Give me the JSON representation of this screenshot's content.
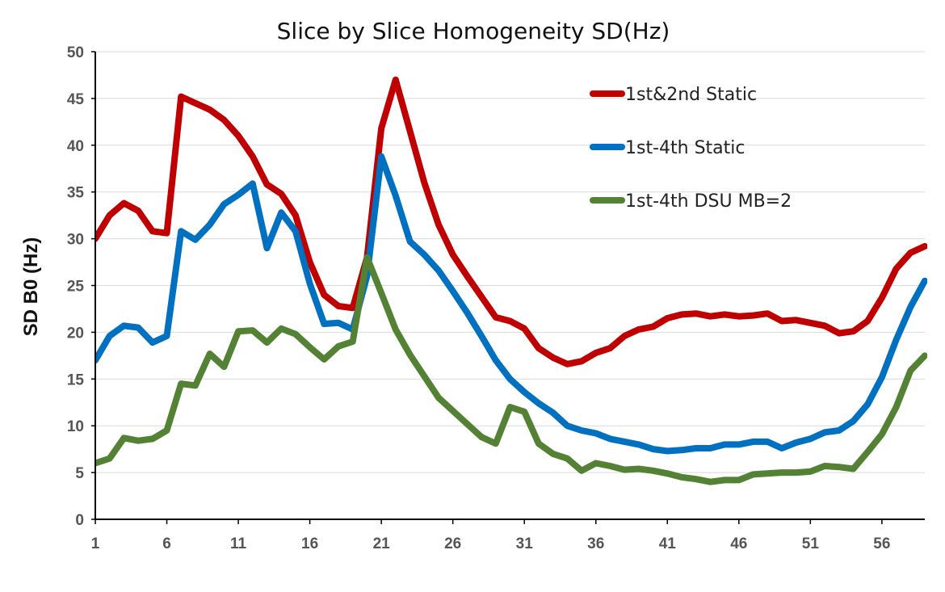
{
  "chart_data": {
    "type": "line",
    "title": "Slice by Slice Homogeneity  SD(Hz)",
    "ylabel": "SD B0 (Hz)",
    "xlabel": "",
    "ylim": [
      0,
      50
    ],
    "xlim": [
      1,
      59
    ],
    "yticks": [
      0,
      5,
      10,
      15,
      20,
      25,
      30,
      35,
      40,
      45,
      50
    ],
    "xticks": [
      1,
      6,
      11,
      16,
      21,
      26,
      31,
      36,
      41,
      46,
      51,
      56
    ],
    "grid": true,
    "legend_position": "top-right",
    "x": [
      1,
      2,
      3,
      4,
      5,
      6,
      7,
      8,
      9,
      10,
      11,
      12,
      13,
      14,
      15,
      16,
      17,
      18,
      19,
      20,
      21,
      22,
      23,
      24,
      25,
      26,
      27,
      28,
      29,
      30,
      31,
      32,
      33,
      34,
      35,
      36,
      37,
      38,
      39,
      40,
      41,
      42,
      43,
      44,
      45,
      46,
      47,
      48,
      49,
      50,
      51,
      52,
      53,
      54,
      55,
      56,
      57,
      58,
      59
    ],
    "series": [
      {
        "name": "1st&2nd Static",
        "color": "#c00000",
        "values": [
          30,
          32.5,
          33.8,
          33,
          30.8,
          30.6,
          45.2,
          44.5,
          43.8,
          42.7,
          41,
          38.8,
          35.8,
          34.8,
          32.5,
          27.5,
          24,
          22.8,
          22.6,
          28,
          41.8,
          47,
          41.5,
          36,
          31.5,
          28.3,
          26,
          23.8,
          21.6,
          21.2,
          20.4,
          18.3,
          17.3,
          16.6,
          16.9,
          17.8,
          18.3,
          19.6,
          20.3,
          20.6,
          21.5,
          21.9,
          22,
          21.7,
          21.9,
          21.7,
          21.8,
          22,
          21.2,
          21.3,
          21,
          20.7,
          19.9,
          20.1,
          21.2,
          23.7,
          26.8,
          28.5,
          29.2
        ]
      },
      {
        "name": "1st-4th Static",
        "color": "#0070c0",
        "values": [
          17,
          19.6,
          20.7,
          20.5,
          18.9,
          19.6,
          30.8,
          29.9,
          31.5,
          33.7,
          34.7,
          35.9,
          29,
          32.8,
          30.8,
          25.2,
          20.9,
          21,
          20.3,
          26,
          38.8,
          34.6,
          29.7,
          28.3,
          26.6,
          24.4,
          22.1,
          19.6,
          17,
          15,
          13.6,
          12.4,
          11.4,
          10,
          9.5,
          9.2,
          8.6,
          8.3,
          8,
          7.5,
          7.3,
          7.4,
          7.6,
          7.6,
          8,
          8,
          8.3,
          8.3,
          7.6,
          8.2,
          8.6,
          9.3,
          9.5,
          10.5,
          12.3,
          15.2,
          19.2,
          22.7,
          25.5
        ]
      },
      {
        "name": "1st-4th DSU MB=2",
        "color": "#548235",
        "values": [
          6,
          6.5,
          8.7,
          8.4,
          8.6,
          9.5,
          14.5,
          14.3,
          17.7,
          16.3,
          20.1,
          20.2,
          18.9,
          20.4,
          19.8,
          18.4,
          17.1,
          18.5,
          19,
          28,
          24.2,
          20.3,
          17.6,
          15.3,
          13,
          11.6,
          10.2,
          8.8,
          8.1,
          12,
          11.5,
          8.1,
          7,
          6.5,
          5.2,
          6,
          5.7,
          5.3,
          5.4,
          5.2,
          4.9,
          4.5,
          4.3,
          4,
          4.2,
          4.2,
          4.8,
          4.9,
          5,
          5,
          5.1,
          5.7,
          5.6,
          5.4,
          7.2,
          9.1,
          12,
          15.9,
          17.5
        ]
      }
    ]
  }
}
